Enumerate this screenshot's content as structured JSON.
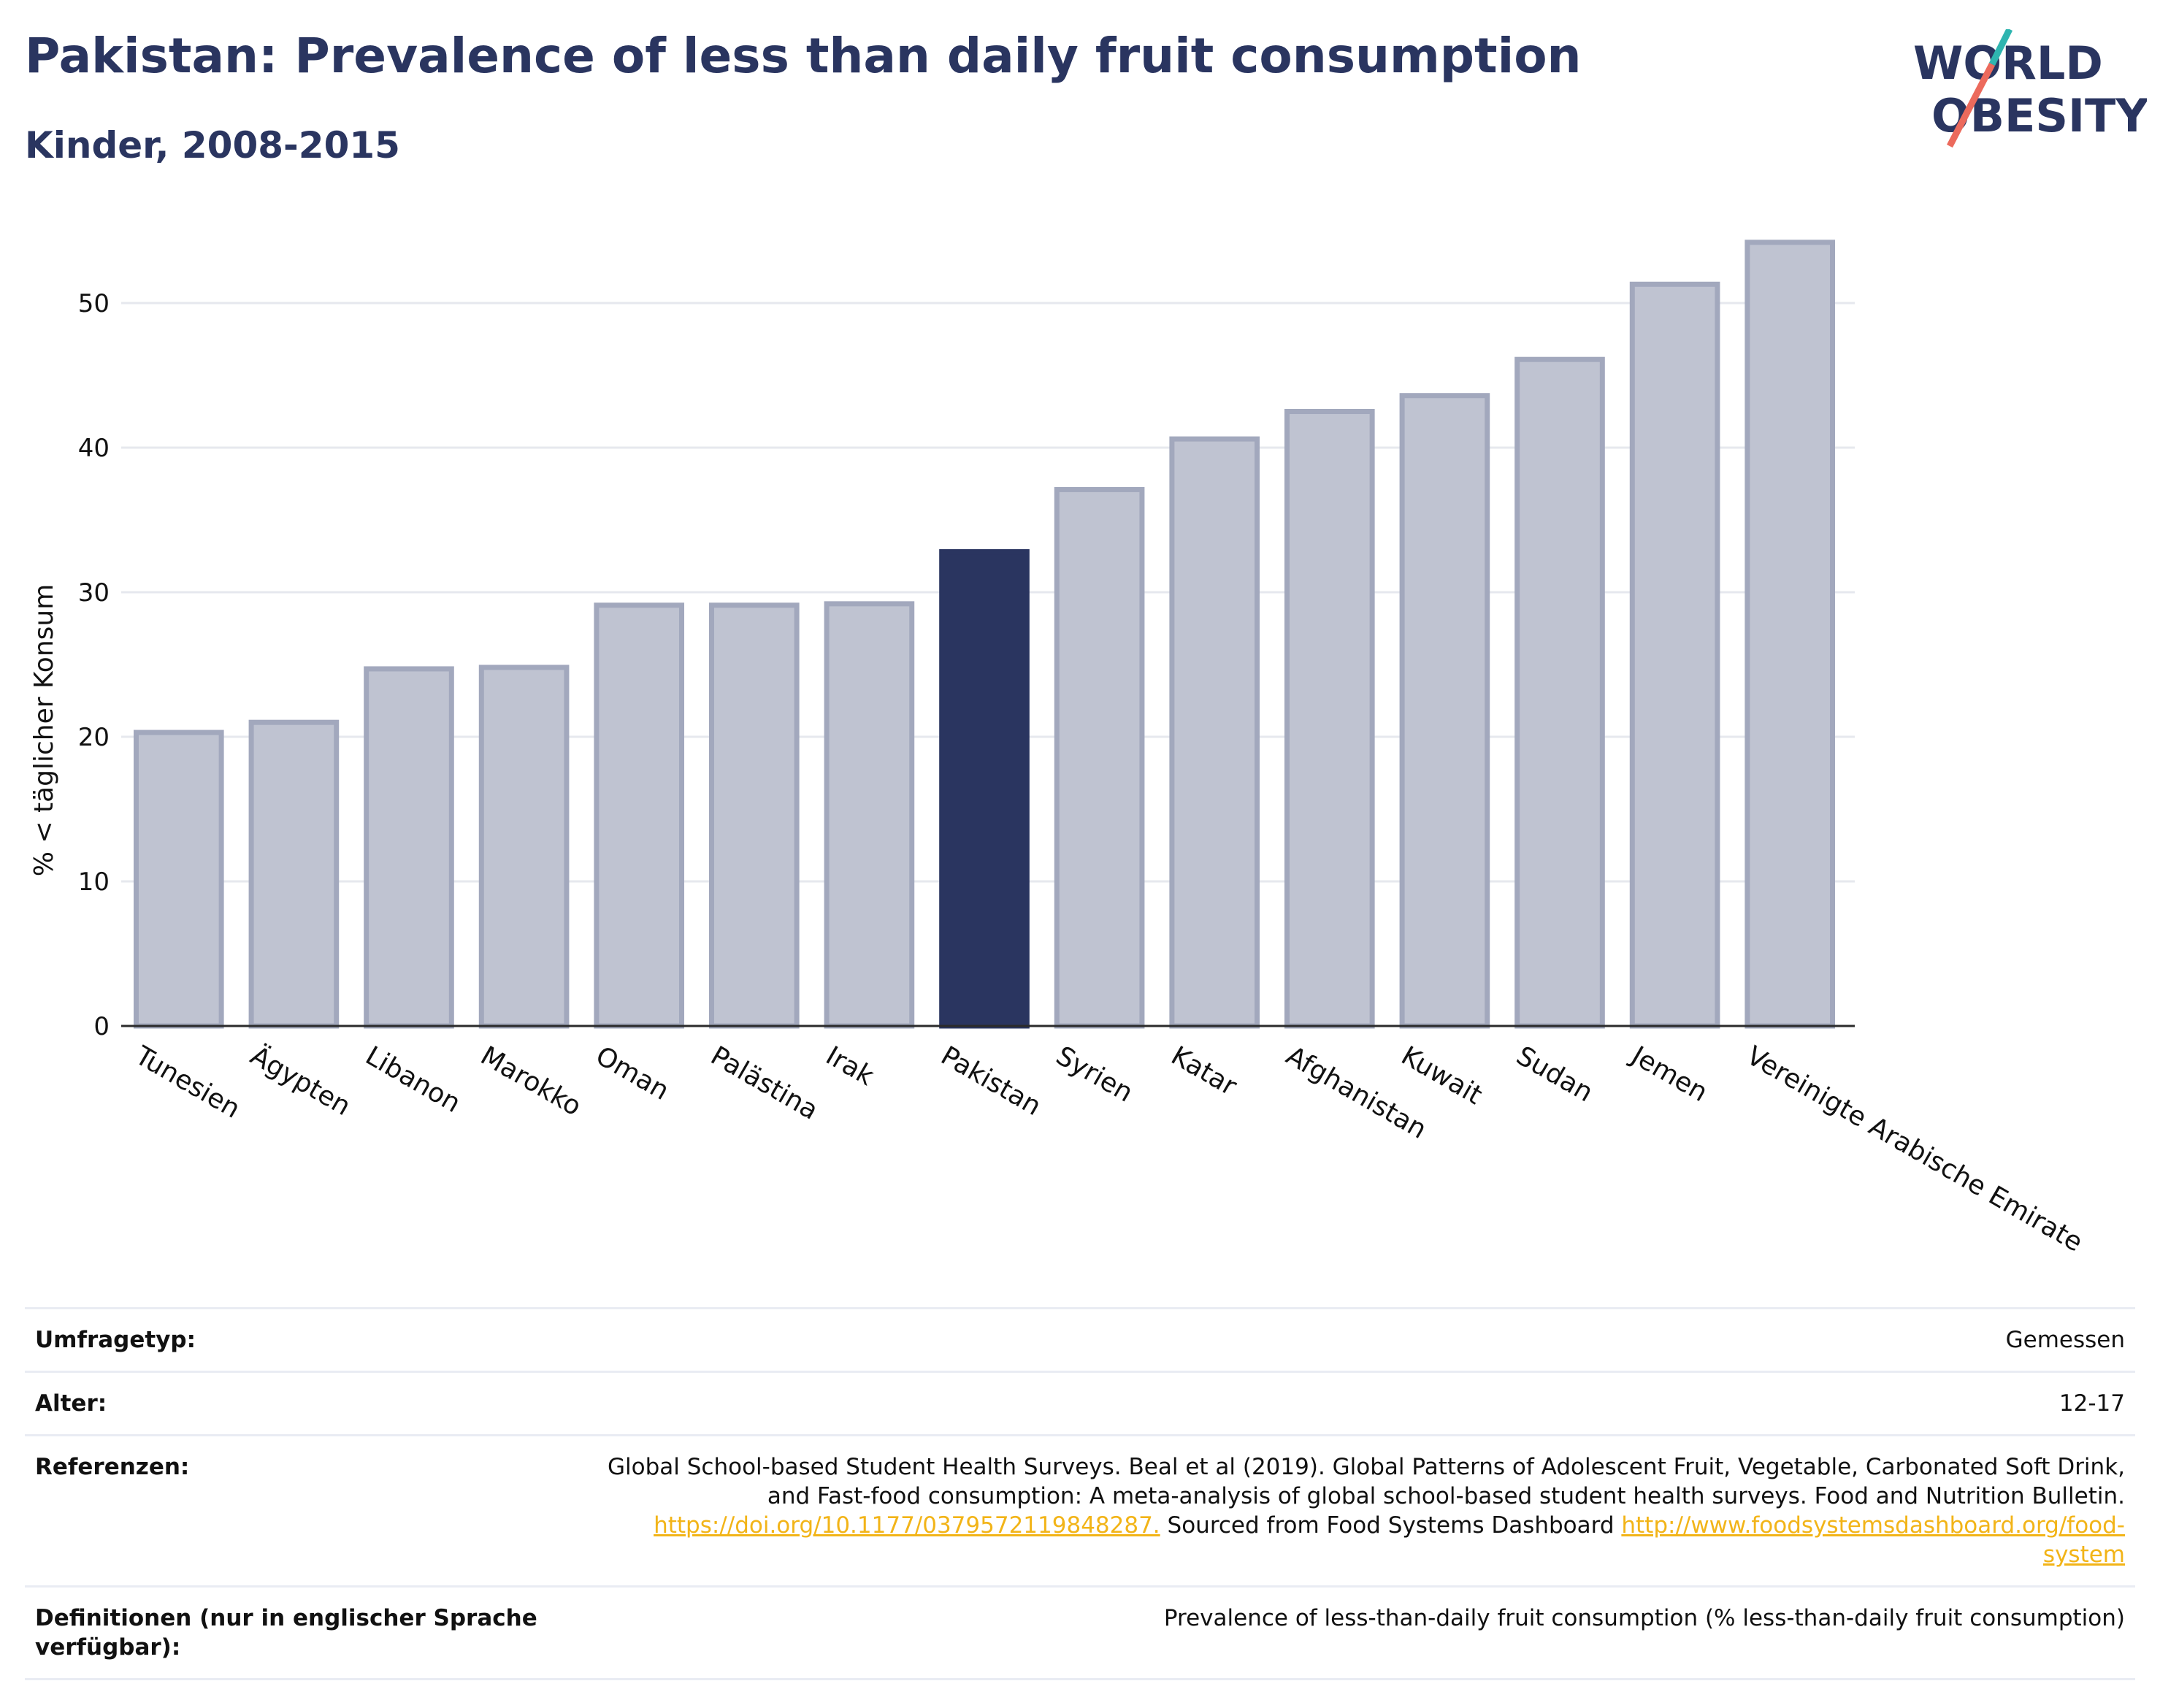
{
  "header": {
    "title": "Pakistan: Prevalence of less than daily fruit consumption",
    "subtitle": "Kinder, 2008-2015"
  },
  "logo": {
    "line1": "WORLD",
    "line2": "OBESITY",
    "accent_colors": [
      "#2fb5b0",
      "#ec6a5c"
    ]
  },
  "chart_data": {
    "type": "bar",
    "title": "Pakistan: Prevalence of less than daily fruit consumption",
    "subtitle": "Kinder, 2008-2015",
    "ylabel": "% < täglicher Konsum",
    "xlabel": "",
    "ylim": [
      0,
      55
    ],
    "yticks": [
      0,
      10,
      20,
      30,
      40,
      50
    ],
    "grid": true,
    "highlight": "Pakistan",
    "bar_color": "#bfc3d1",
    "bar_edge_color": "#a2a8bd",
    "highlight_color": "#2a3560",
    "categories": [
      "Tunesien",
      "Ägypten",
      "Libanon",
      "Marokko",
      "Oman",
      "Palästina",
      "Irak",
      "Pakistan",
      "Syrien",
      "Katar",
      "Afghanistan",
      "Kuwait",
      "Sudan",
      "Jemen",
      "Vereinigte Arabische Emirate"
    ],
    "values": [
      20.3,
      21.0,
      24.7,
      24.8,
      29.1,
      29.1,
      29.2,
      32.8,
      37.1,
      40.6,
      42.5,
      43.6,
      46.1,
      51.3,
      54.2
    ]
  },
  "info_table": [
    {
      "label": "Umfragetyp:",
      "value_lines": [
        "Gemessen"
      ]
    },
    {
      "label": "Alter:",
      "value_lines": [
        "12-17"
      ]
    },
    {
      "label": "Referenzen:",
      "value_lines": [
        "Global School-based Student Health Surveys. Beal et al (2019). Global Patterns of Adolescent Fruit, Vegetable, Carbonated Soft Drink,",
        "and Fast-food consumption: A meta-analysis of global school-based student health surveys. Food and Nutrition Bulletin."
      ],
      "link1": "https://doi.org/10.1177/0379572119848287.",
      "mid_text": " Sourced from Food Systems Dashboard ",
      "link2a": "http://www.foodsystemsdashboard.org/food-",
      "link2b": "system"
    },
    {
      "label": "Definitionen (nur in englischer Sprache verfügbar):",
      "value_lines": [
        "Prevalence of less-than-daily fruit consumption (% less-than-daily fruit consumption)"
      ]
    }
  ]
}
